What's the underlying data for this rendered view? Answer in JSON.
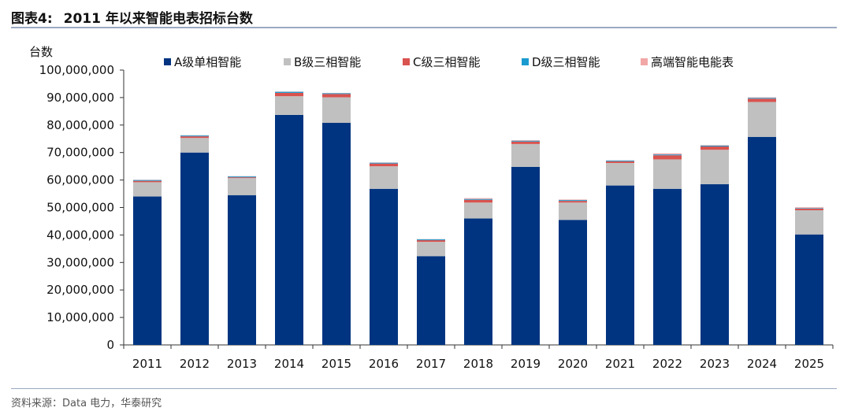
{
  "header": {
    "figure_label": "图表4:",
    "title": "2011 年以来智能电表招标台数"
  },
  "source": "资料来源：Data 电力，华泰研究",
  "chart_data": {
    "type": "bar",
    "stacked": true,
    "ylabel": "台数",
    "ylim": [
      0,
      100000000
    ],
    "yticks": [
      0,
      10000000,
      20000000,
      30000000,
      40000000,
      50000000,
      60000000,
      70000000,
      80000000,
      90000000,
      100000000
    ],
    "ytick_labels": [
      "0",
      "10,000,000",
      "20,000,000",
      "30,000,000",
      "40,000,000",
      "50,000,000",
      "60,000,000",
      "70,000,000",
      "80,000,000",
      "90,000,000",
      "100,000,000"
    ],
    "categories": [
      "2011",
      "2012",
      "2013",
      "2014",
      "2015",
      "2016",
      "2017",
      "2018",
      "2019",
      "2020",
      "2021",
      "2022",
      "2023",
      "2024",
      "2025"
    ],
    "legend_position": "top",
    "series": [
      {
        "name": "A级单相智能",
        "color": "#003480",
        "values": [
          54000000,
          70000000,
          54500000,
          83700000,
          80800000,
          56800000,
          32300000,
          46000000,
          64800000,
          45500000,
          58000000,
          56800000,
          58500000,
          75700000,
          40200000
        ]
      },
      {
        "name": "B级三相智能",
        "color": "#c0c0c0",
        "values": [
          5200000,
          5300000,
          6200000,
          6800000,
          9300000,
          8200000,
          5200000,
          5800000,
          8300000,
          6300000,
          8200000,
          10700000,
          12500000,
          12700000,
          8800000
        ]
      },
      {
        "name": "C级三相智能",
        "color": "#d9534f",
        "values": [
          500000,
          600000,
          300000,
          1200000,
          1200000,
          1000000,
          600000,
          1000000,
          900000,
          600000,
          600000,
          1500000,
          1200000,
          1200000,
          600000
        ]
      },
      {
        "name": "D级三相智能",
        "color": "#1a9bd0",
        "values": [
          300000,
          300000,
          300000,
          400000,
          300000,
          300000,
          300000,
          300000,
          300000,
          300000,
          300000,
          300000,
          300000,
          300000,
          200000
        ]
      },
      {
        "name": "高端智能电能表",
        "color": "#f2a7a7",
        "values": [
          100000,
          100000,
          100000,
          100000,
          100000,
          100000,
          100000,
          300000,
          200000,
          200000,
          100000,
          400000,
          200000,
          200000,
          300000
        ]
      }
    ]
  }
}
